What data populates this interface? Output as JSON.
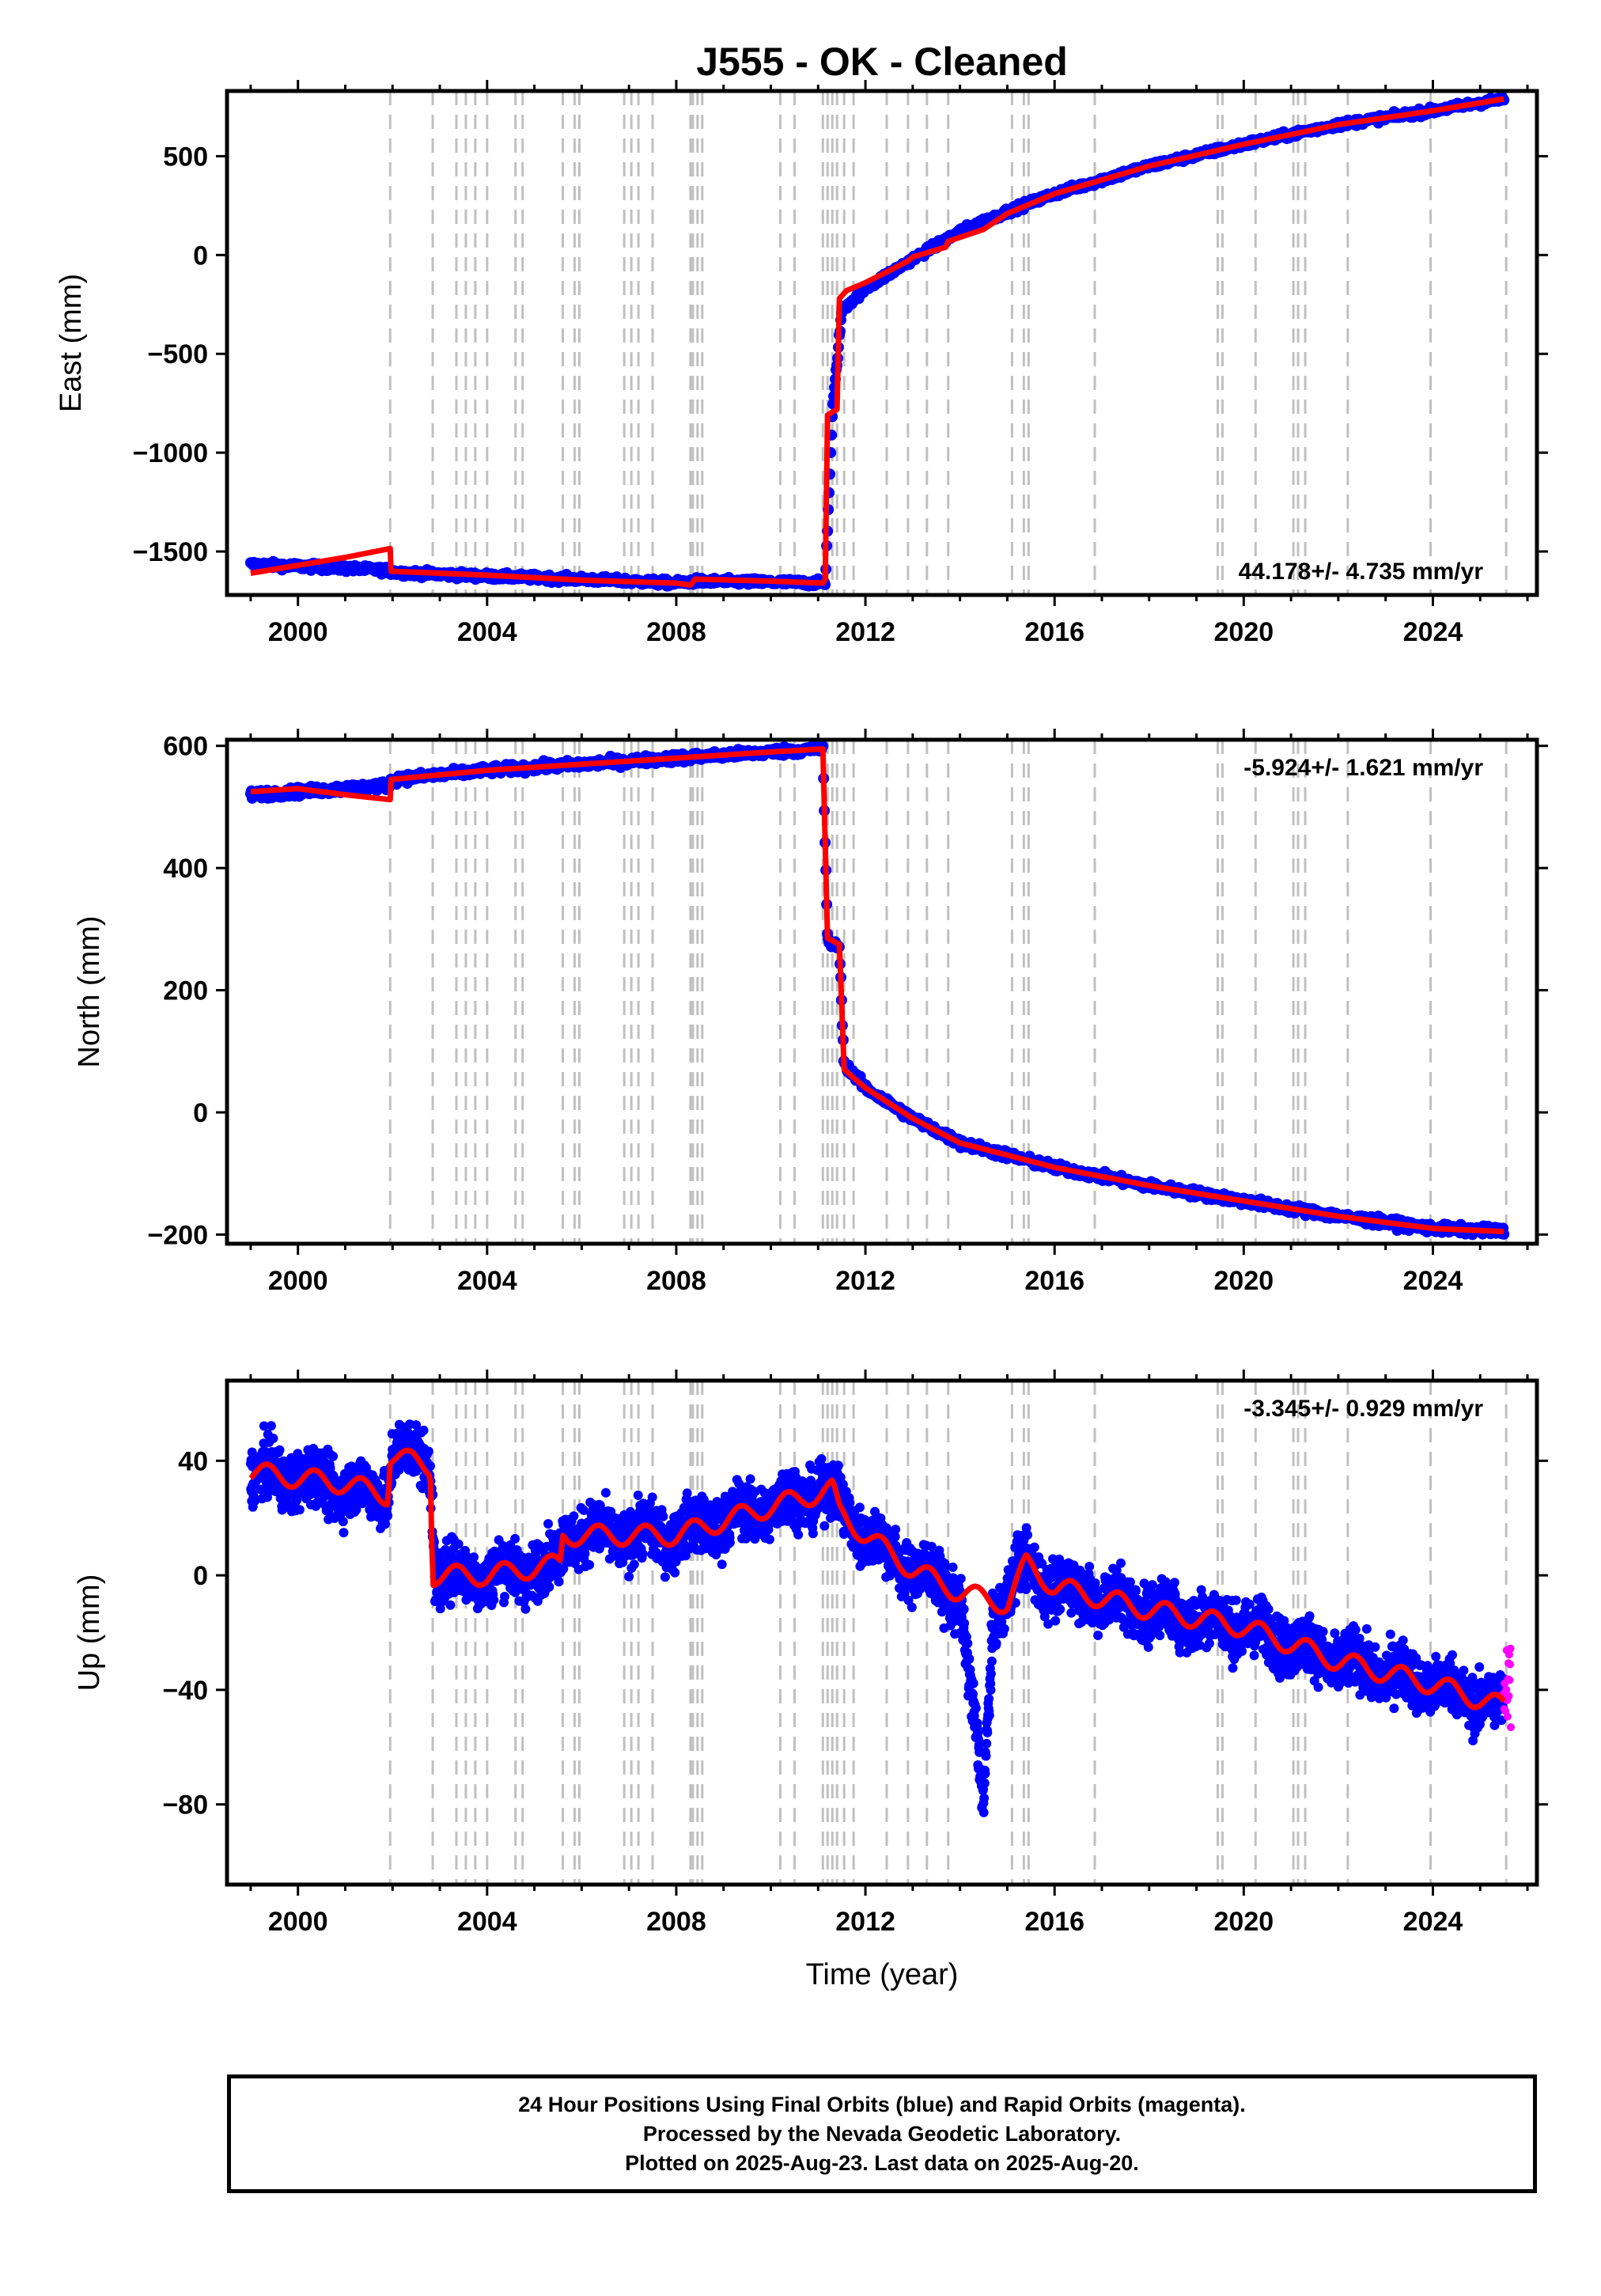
{
  "title": "J555  - OK - Cleaned",
  "xlabel": "Time (year)",
  "x_ticks": [
    2000,
    2004,
    2008,
    2012,
    2016,
    2020,
    2024
  ],
  "xlim": [
    1998.5,
    2026.2
  ],
  "colors": {
    "final_orbits": "#0000ff",
    "rapid_orbits": "#ff00ff",
    "model": "#ff0000",
    "steps": "#c0c0c0"
  },
  "step_lines": [
    2001.95,
    2002.85,
    2003.35,
    2003.55,
    2003.75,
    2004.0,
    2004.6,
    2004.75,
    2005.6,
    2005.85,
    2005.95,
    2006.9,
    2007.05,
    2007.2,
    2007.5,
    2008.3,
    2008.35,
    2008.45,
    2008.55,
    2010.2,
    2010.5,
    2011.1,
    2011.2,
    2011.3,
    2011.4,
    2011.55,
    2011.75,
    2012.45,
    2012.9,
    2013.3,
    2013.75,
    2015.1,
    2015.35,
    2015.45,
    2016.85,
    2019.45,
    2019.55,
    2020.25,
    2021.05,
    2021.15,
    2021.3,
    2022.2,
    2023.95,
    2025.55
  ],
  "chart_data": [
    {
      "type": "scatter",
      "ylabel": "East (mm)",
      "ylim": [
        -1720,
        830
      ],
      "y_ticks": [
        500,
        0,
        -500,
        -1000,
        -1500
      ],
      "y_tick_labels": [
        "500",
        "0",
        "−500",
        "−1000",
        "−1500"
      ],
      "rate_label": "44.178+/- 4.735 mm/yr",
      "rate_position": "bottom-right",
      "series": [
        {
          "name": "Final Orbits (blue)",
          "x": [
            1999.0,
            2000.0,
            2001.0,
            2001.9,
            2002.0,
            2004.0,
            2006.0,
            2008.0,
            2008.4,
            2010.0,
            2011.15,
            2011.3,
            2011.5,
            2012.0,
            2013.0,
            2014.0,
            2015.0,
            2016.0,
            2018.0,
            2020.0,
            2022.0,
            2024.0,
            2025.5
          ],
          "y": [
            -1565,
            -1575,
            -1585,
            -1595,
            -1605,
            -1625,
            -1640,
            -1660,
            -1650,
            -1655,
            -1660,
            -800,
            -280,
            -170,
            -20,
            120,
            220,
            310,
            450,
            560,
            660,
            730,
            790
          ]
        },
        {
          "name": "Model (red)",
          "x": [
            1999.0,
            2000.0,
            2001.0,
            2001.95,
            2001.97,
            2004.0,
            2006.0,
            2008.0,
            2008.3,
            2008.4,
            2010.0,
            2011.1,
            2011.15,
            2011.2,
            2011.4,
            2011.45,
            2011.6,
            2012.0,
            2012.5,
            2012.9,
            2013.0,
            2013.7,
            2013.75,
            2014.5,
            2015.0,
            2016.0,
            2018.0,
            2020.0,
            2022.0,
            2024.0,
            2025.5
          ],
          "y": [
            -1610,
            -1570,
            -1530,
            -1485,
            -1600,
            -1620,
            -1645,
            -1660,
            -1670,
            -1640,
            -1650,
            -1660,
            -1640,
            -810,
            -780,
            -220,
            -180,
            -140,
            -80,
            -30,
            -10,
            40,
            70,
            130,
            210,
            310,
            450,
            560,
            660,
            730,
            790
          ]
        }
      ]
    },
    {
      "type": "scatter",
      "ylabel": "North (mm)",
      "ylim": [
        -215,
        610
      ],
      "y_ticks": [
        600,
        400,
        200,
        0,
        -200
      ],
      "y_tick_labels": [
        "600",
        "400",
        "200",
        "0",
        "−200"
      ],
      "rate_label": "-5.924+/- 1.621 mm/yr",
      "rate_position": "top-right",
      "series": [
        {
          "name": "Final Orbits (blue)",
          "x": [
            1999.0,
            2000.0,
            2001.0,
            2001.9,
            2002.0,
            2004.0,
            2006.0,
            2008.0,
            2010.0,
            2011.1,
            2011.2,
            2011.45,
            2011.55,
            2012.0,
            2013.0,
            2014.0,
            2015.0,
            2016.0,
            2018.0,
            2020.0,
            2022.0,
            2024.0,
            2025.5
          ],
          "y": [
            520,
            525,
            530,
            535,
            545,
            560,
            570,
            580,
            590,
            595,
            280,
            270,
            80,
            40,
            -10,
            -50,
            -70,
            -90,
            -120,
            -145,
            -170,
            -190,
            -195
          ]
        },
        {
          "name": "Model (red)",
          "x": [
            1999.0,
            2000.0,
            2001.0,
            2001.95,
            2001.97,
            2004.0,
            2006.0,
            2008.0,
            2010.0,
            2011.1,
            2011.2,
            2011.45,
            2011.55,
            2012.0,
            2013.0,
            2014.0,
            2015.0,
            2016.0,
            2018.0,
            2020.0,
            2022.0,
            2024.0,
            2025.5
          ],
          "y": [
            525,
            530,
            520,
            512,
            545,
            560,
            570,
            580,
            590,
            595,
            285,
            275,
            70,
            40,
            -10,
            -50,
            -70,
            -90,
            -120,
            -145,
            -170,
            -190,
            -195
          ]
        }
      ]
    },
    {
      "type": "scatter",
      "ylabel": "Up (mm)",
      "ylim": [
        -108,
        68
      ],
      "y_ticks": [
        40,
        0,
        -40,
        -80
      ],
      "y_tick_labels": [
        "40",
        "0",
        "−40",
        "−80"
      ],
      "rate_label": "-3.345+/- 0.929 mm/yr",
      "rate_position": "top-right",
      "series": [
        {
          "name": "Final Orbits (blue)",
          "x": [
            1999.0,
            2000.0,
            2001.0,
            2001.9,
            2002.0,
            2002.8,
            2002.9,
            2004.0,
            2005.5,
            2005.6,
            2008.0,
            2010.0,
            2011.2,
            2011.5,
            2012.0,
            2013.0,
            2014.0,
            2014.5,
            2014.7,
            2015.3,
            2016.0,
            2018.0,
            2020.0,
            2022.0,
            2024.0,
            2025.5
          ],
          "y": [
            36,
            34,
            30,
            28,
            44,
            40,
            0,
            0,
            4,
            14,
            14,
            24,
            30,
            24,
            14,
            2,
            -8,
            -80,
            -15,
            4,
            -4,
            -12,
            -18,
            -30,
            -38,
            -46
          ]
        },
        {
          "name": "Rapid Orbits (magenta)",
          "x": [
            2025.5,
            2025.55,
            2025.6,
            2025.65
          ],
          "y": [
            -25,
            -35,
            -45,
            -55
          ]
        },
        {
          "name": "Model (red)",
          "x": [
            1999.0,
            2000.0,
            2001.0,
            2001.9,
            2001.95,
            2002.8,
            2002.85,
            2004.0,
            2005.55,
            2005.6,
            2008.0,
            2010.0,
            2011.3,
            2011.45,
            2012.0,
            2013.0,
            2014.0,
            2015.0,
            2015.4,
            2016.0,
            2018.0,
            2020.0,
            2022.0,
            2024.0,
            2025.5
          ],
          "y": [
            36,
            34,
            32,
            28,
            42,
            38,
            0,
            0,
            4,
            14,
            14,
            24,
            30,
            22,
            14,
            2,
            -6,
            -10,
            4,
            -4,
            -12,
            -18,
            -30,
            -38,
            -46
          ]
        }
      ]
    }
  ],
  "footer": {
    "line1": "24 Hour Positions Using Final Orbits (blue) and Rapid Orbits (magenta).",
    "line2": "Processed by the Nevada Geodetic Laboratory.",
    "line3": "Plotted on 2025-Aug-23. Last data on 2025-Aug-20."
  }
}
